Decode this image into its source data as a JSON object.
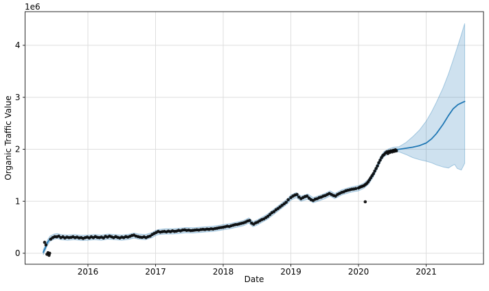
{
  "chart_data": {
    "type": "line",
    "title": "",
    "xlabel": "Date",
    "ylabel": "Organic Traffic Value",
    "y_offset_label": "1e6",
    "y_unit_scale": 1000000,
    "grid": true,
    "legend": false,
    "x_ticks": [
      "2016",
      "2017",
      "2018",
      "2019",
      "2020",
      "2021"
    ],
    "x_tick_values": [
      2016,
      2017,
      2018,
      2019,
      2020,
      2021
    ],
    "y_ticks": [
      "0",
      "1",
      "2",
      "3",
      "4"
    ],
    "y_tick_values": [
      0,
      1,
      2,
      3,
      4
    ],
    "xlim": [
      2015.07,
      2021.84
    ],
    "ylim": [
      -0.21,
      4.65
    ],
    "colors": {
      "scatter": "#0a0a0a",
      "line": "#1f77b4",
      "band_fill": "rgba(31,119,180,0.22)",
      "band_edge": "rgba(31,119,180,0.35)",
      "grid": "#dedede",
      "spine": "#262626",
      "text": "#000000"
    },
    "observed_scatter": [
      [
        2015.36,
        0.21
      ],
      [
        2015.38,
        0.16
      ],
      [
        2015.395,
        -0.02
      ],
      [
        2015.41,
        0.01
      ],
      [
        2015.425,
        -0.04
      ],
      [
        2015.435,
        0.0
      ],
      [
        2015.45,
        0.27
      ],
      [
        2015.48,
        0.3
      ],
      [
        2015.51,
        0.32
      ],
      [
        2015.54,
        0.315
      ],
      [
        2015.57,
        0.33
      ],
      [
        2015.6,
        0.3
      ],
      [
        2015.63,
        0.315
      ],
      [
        2015.66,
        0.295
      ],
      [
        2015.69,
        0.31
      ],
      [
        2015.72,
        0.3
      ],
      [
        2015.75,
        0.305
      ],
      [
        2015.78,
        0.315
      ],
      [
        2015.81,
        0.3
      ],
      [
        2015.84,
        0.31
      ],
      [
        2015.87,
        0.295
      ],
      [
        2015.9,
        0.3
      ],
      [
        2015.93,
        0.285
      ],
      [
        2015.96,
        0.3
      ],
      [
        2015.99,
        0.31
      ],
      [
        2016.02,
        0.295
      ],
      [
        2016.05,
        0.315
      ],
      [
        2016.08,
        0.3
      ],
      [
        2016.11,
        0.32
      ],
      [
        2016.14,
        0.305
      ],
      [
        2016.17,
        0.3
      ],
      [
        2016.2,
        0.31
      ],
      [
        2016.23,
        0.295
      ],
      [
        2016.26,
        0.325
      ],
      [
        2016.29,
        0.31
      ],
      [
        2016.32,
        0.33
      ],
      [
        2016.35,
        0.315
      ],
      [
        2016.38,
        0.3
      ],
      [
        2016.41,
        0.32
      ],
      [
        2016.44,
        0.305
      ],
      [
        2016.47,
        0.295
      ],
      [
        2016.5,
        0.31
      ],
      [
        2016.53,
        0.3
      ],
      [
        2016.56,
        0.32
      ],
      [
        2016.59,
        0.31
      ],
      [
        2016.62,
        0.325
      ],
      [
        2016.65,
        0.34
      ],
      [
        2016.68,
        0.35
      ],
      [
        2016.71,
        0.33
      ],
      [
        2016.74,
        0.32
      ],
      [
        2016.77,
        0.31
      ],
      [
        2016.8,
        0.305
      ],
      [
        2016.83,
        0.315
      ],
      [
        2016.86,
        0.3
      ],
      [
        2016.89,
        0.32
      ],
      [
        2016.92,
        0.33
      ],
      [
        2016.95,
        0.36
      ],
      [
        2016.98,
        0.38
      ],
      [
        2017.01,
        0.4
      ],
      [
        2017.04,
        0.42
      ],
      [
        2017.07,
        0.405
      ],
      [
        2017.1,
        0.415
      ],
      [
        2017.13,
        0.42
      ],
      [
        2017.16,
        0.41
      ],
      [
        2017.19,
        0.425
      ],
      [
        2017.22,
        0.415
      ],
      [
        2017.25,
        0.43
      ],
      [
        2017.28,
        0.42
      ],
      [
        2017.31,
        0.425
      ],
      [
        2017.34,
        0.44
      ],
      [
        2017.37,
        0.43
      ],
      [
        2017.4,
        0.445
      ],
      [
        2017.43,
        0.45
      ],
      [
        2017.46,
        0.44
      ],
      [
        2017.49,
        0.445
      ],
      [
        2017.52,
        0.435
      ],
      [
        2017.55,
        0.44
      ],
      [
        2017.58,
        0.445
      ],
      [
        2017.61,
        0.45
      ],
      [
        2017.64,
        0.445
      ],
      [
        2017.67,
        0.455
      ],
      [
        2017.7,
        0.46
      ],
      [
        2017.73,
        0.455
      ],
      [
        2017.76,
        0.465
      ],
      [
        2017.79,
        0.46
      ],
      [
        2017.82,
        0.47
      ],
      [
        2017.85,
        0.465
      ],
      [
        2017.88,
        0.475
      ],
      [
        2017.91,
        0.48
      ],
      [
        2017.94,
        0.49
      ],
      [
        2017.97,
        0.495
      ],
      [
        2018.0,
        0.5
      ],
      [
        2018.03,
        0.51
      ],
      [
        2018.06,
        0.52
      ],
      [
        2018.09,
        0.515
      ],
      [
        2018.12,
        0.53
      ],
      [
        2018.15,
        0.54
      ],
      [
        2018.18,
        0.55
      ],
      [
        2018.21,
        0.555
      ],
      [
        2018.24,
        0.565
      ],
      [
        2018.27,
        0.575
      ],
      [
        2018.3,
        0.585
      ],
      [
        2018.33,
        0.6
      ],
      [
        2018.36,
        0.62
      ],
      [
        2018.39,
        0.63
      ],
      [
        2018.42,
        0.58
      ],
      [
        2018.45,
        0.56
      ],
      [
        2018.48,
        0.585
      ],
      [
        2018.51,
        0.6
      ],
      [
        2018.54,
        0.625
      ],
      [
        2018.57,
        0.645
      ],
      [
        2018.6,
        0.66
      ],
      [
        2018.63,
        0.685
      ],
      [
        2018.66,
        0.71
      ],
      [
        2018.69,
        0.745
      ],
      [
        2018.72,
        0.78
      ],
      [
        2018.75,
        0.8
      ],
      [
        2018.78,
        0.835
      ],
      [
        2018.81,
        0.86
      ],
      [
        2018.84,
        0.89
      ],
      [
        2018.87,
        0.92
      ],
      [
        2018.9,
        0.95
      ],
      [
        2018.93,
        0.98
      ],
      [
        2018.96,
        1.03
      ],
      [
        2019.0,
        1.07
      ],
      [
        2019.03,
        1.1
      ],
      [
        2019.06,
        1.12
      ],
      [
        2019.09,
        1.13
      ],
      [
        2019.12,
        1.08
      ],
      [
        2019.15,
        1.05
      ],
      [
        2019.18,
        1.07
      ],
      [
        2019.21,
        1.09
      ],
      [
        2019.24,
        1.1
      ],
      [
        2019.27,
        1.06
      ],
      [
        2019.3,
        1.03
      ],
      [
        2019.33,
        1.015
      ],
      [
        2019.36,
        1.04
      ],
      [
        2019.39,
        1.05
      ],
      [
        2019.42,
        1.07
      ],
      [
        2019.45,
        1.08
      ],
      [
        2019.48,
        1.1
      ],
      [
        2019.51,
        1.11
      ],
      [
        2019.54,
        1.13
      ],
      [
        2019.57,
        1.15
      ],
      [
        2019.6,
        1.13
      ],
      [
        2019.63,
        1.11
      ],
      [
        2019.66,
        1.1
      ],
      [
        2019.69,
        1.13
      ],
      [
        2019.72,
        1.15
      ],
      [
        2019.75,
        1.17
      ],
      [
        2019.78,
        1.18
      ],
      [
        2019.81,
        1.2
      ],
      [
        2019.84,
        1.21
      ],
      [
        2019.87,
        1.22
      ],
      [
        2019.9,
        1.23
      ],
      [
        2019.93,
        1.235
      ],
      [
        2019.96,
        1.245
      ],
      [
        2020.0,
        1.255
      ],
      [
        2020.02,
        1.27
      ],
      [
        2020.04,
        1.28
      ],
      [
        2020.06,
        1.29
      ],
      [
        2020.08,
        1.3
      ],
      [
        2020.1,
        0.99
      ],
      [
        2020.1,
        1.32
      ],
      [
        2020.12,
        1.34
      ],
      [
        2020.14,
        1.37
      ],
      [
        2020.16,
        1.41
      ],
      [
        2020.18,
        1.45
      ],
      [
        2020.2,
        1.49
      ],
      [
        2020.22,
        1.53
      ],
      [
        2020.24,
        1.58
      ],
      [
        2020.26,
        1.63
      ],
      [
        2020.28,
        1.68
      ],
      [
        2020.3,
        1.74
      ],
      [
        2020.32,
        1.79
      ],
      [
        2020.34,
        1.84
      ],
      [
        2020.36,
        1.88
      ],
      [
        2020.38,
        1.9
      ],
      [
        2020.4,
        1.93
      ],
      [
        2020.42,
        1.95
      ],
      [
        2020.435,
        1.92
      ],
      [
        2020.45,
        1.96
      ],
      [
        2020.465,
        1.94
      ],
      [
        2020.48,
        1.97
      ],
      [
        2020.5,
        1.95
      ],
      [
        2020.515,
        1.98
      ],
      [
        2020.53,
        1.96
      ],
      [
        2020.545,
        1.99
      ],
      [
        2020.56,
        1.97
      ]
    ],
    "fitted_line": [
      [
        2015.34,
        0.02
      ],
      [
        2015.37,
        0.1
      ],
      [
        2015.4,
        0.2
      ],
      [
        2015.44,
        0.28
      ],
      [
        2015.5,
        0.32
      ],
      [
        2015.55,
        0.33
      ],
      [
        2015.6,
        0.31
      ],
      [
        2015.7,
        0.3
      ],
      [
        2015.8,
        0.31
      ],
      [
        2015.9,
        0.295
      ],
      [
        2016.0,
        0.3
      ],
      [
        2016.1,
        0.31
      ],
      [
        2016.2,
        0.3
      ],
      [
        2016.3,
        0.32
      ],
      [
        2016.4,
        0.31
      ],
      [
        2016.5,
        0.3
      ],
      [
        2016.6,
        0.315
      ],
      [
        2016.68,
        0.34
      ],
      [
        2016.75,
        0.32
      ],
      [
        2016.85,
        0.31
      ],
      [
        2016.95,
        0.35
      ],
      [
        2017.0,
        0.39
      ],
      [
        2017.05,
        0.41
      ],
      [
        2017.15,
        0.42
      ],
      [
        2017.25,
        0.42
      ],
      [
        2017.35,
        0.43
      ],
      [
        2017.45,
        0.445
      ],
      [
        2017.55,
        0.44
      ],
      [
        2017.65,
        0.45
      ],
      [
        2017.75,
        0.46
      ],
      [
        2017.85,
        0.47
      ],
      [
        2017.95,
        0.49
      ],
      [
        2018.0,
        0.5
      ],
      [
        2018.1,
        0.52
      ],
      [
        2018.2,
        0.55
      ],
      [
        2018.3,
        0.58
      ],
      [
        2018.38,
        0.63
      ],
      [
        2018.44,
        0.56
      ],
      [
        2018.5,
        0.59
      ],
      [
        2018.58,
        0.65
      ],
      [
        2018.65,
        0.7
      ],
      [
        2018.75,
        0.8
      ],
      [
        2018.85,
        0.9
      ],
      [
        2018.95,
        1.0
      ],
      [
        2019.0,
        1.07
      ],
      [
        2019.08,
        1.12
      ],
      [
        2019.15,
        1.05
      ],
      [
        2019.25,
        1.09
      ],
      [
        2019.33,
        1.02
      ],
      [
        2019.42,
        1.06
      ],
      [
        2019.5,
        1.1
      ],
      [
        2019.58,
        1.15
      ],
      [
        2019.65,
        1.1
      ],
      [
        2019.75,
        1.17
      ],
      [
        2019.85,
        1.21
      ],
      [
        2019.95,
        1.24
      ],
      [
        2020.0,
        1.25
      ],
      [
        2020.08,
        1.3
      ],
      [
        2020.15,
        1.38
      ],
      [
        2020.22,
        1.52
      ],
      [
        2020.28,
        1.68
      ],
      [
        2020.33,
        1.82
      ],
      [
        2020.38,
        1.91
      ],
      [
        2020.45,
        1.96
      ],
      [
        2020.52,
        1.99
      ],
      [
        2020.6,
        2.0
      ]
    ],
    "forecast_line": [
      [
        2020.6,
        2.0
      ],
      [
        2020.7,
        2.02
      ],
      [
        2020.8,
        2.04
      ],
      [
        2020.9,
        2.07
      ],
      [
        2021.0,
        2.12
      ],
      [
        2021.08,
        2.2
      ],
      [
        2021.15,
        2.3
      ],
      [
        2021.25,
        2.48
      ],
      [
        2021.33,
        2.65
      ],
      [
        2021.4,
        2.78
      ],
      [
        2021.47,
        2.86
      ],
      [
        2021.52,
        2.89
      ],
      [
        2021.57,
        2.92
      ]
    ],
    "band": {
      "observed_halfwidth": 0.05,
      "upper_forecast": [
        [
          2020.6,
          2.05
        ],
        [
          2020.7,
          2.13
        ],
        [
          2020.8,
          2.24
        ],
        [
          2020.9,
          2.37
        ],
        [
          2021.0,
          2.54
        ],
        [
          2021.08,
          2.72
        ],
        [
          2021.15,
          2.9
        ],
        [
          2021.25,
          3.18
        ],
        [
          2021.33,
          3.45
        ],
        [
          2021.4,
          3.72
        ],
        [
          2021.47,
          4.0
        ],
        [
          2021.52,
          4.2
        ],
        [
          2021.57,
          4.42
        ]
      ],
      "lower_forecast": [
        [
          2020.6,
          1.95
        ],
        [
          2020.7,
          1.9
        ],
        [
          2020.8,
          1.84
        ],
        [
          2020.9,
          1.8
        ],
        [
          2021.0,
          1.77
        ],
        [
          2021.08,
          1.74
        ],
        [
          2021.15,
          1.7
        ],
        [
          2021.25,
          1.66
        ],
        [
          2021.33,
          1.64
        ],
        [
          2021.38,
          1.68
        ],
        [
          2021.42,
          1.71
        ],
        [
          2021.46,
          1.63
        ],
        [
          2021.52,
          1.6
        ],
        [
          2021.57,
          1.73
        ]
      ]
    }
  }
}
